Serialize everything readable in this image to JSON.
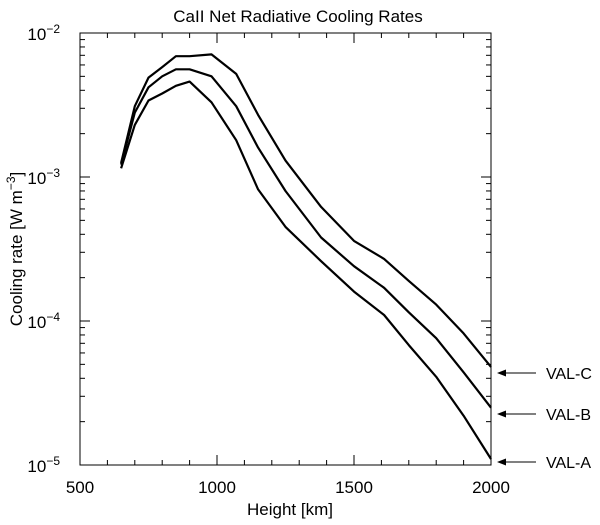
{
  "chart_data": {
    "type": "line",
    "title": "CaII Net Radiative Cooling Rates",
    "xlabel": "Height [km]",
    "ylabel_main": "Cooling rate [W m",
    "ylabel_sup": "−3",
    "ylabel_close": "]",
    "x_scale": "linear",
    "y_scale": "log",
    "xlim": [
      500,
      2000
    ],
    "ylim": [
      1e-05,
      0.01
    ],
    "x_ticks": [
      500,
      1000,
      1500,
      2000
    ],
    "x_tick_labels": [
      "500",
      "1000",
      "1500",
      "2000"
    ],
    "y_ticks": [
      {
        "value": 0.01,
        "base": "10",
        "exp": "−2"
      },
      {
        "value": 0.001,
        "base": "10",
        "exp": "−3"
      },
      {
        "value": 0.0001,
        "base": "10",
        "exp": "−4"
      },
      {
        "value": 1e-05,
        "base": "10",
        "exp": "−5"
      }
    ],
    "series": [
      {
        "name": "VAL-C",
        "x": [
          650,
          700,
          750,
          800,
          850,
          900,
          980,
          1070,
          1150,
          1250,
          1380,
          1500,
          1610,
          1700,
          1800,
          1900,
          2000
        ],
        "y": [
          0.00125,
          0.0031,
          0.0049,
          0.0058,
          0.0069,
          0.0069,
          0.0071,
          0.0052,
          0.0027,
          0.0013,
          0.00062,
          0.00036,
          0.00027,
          0.00019,
          0.00013,
          8.2e-05,
          4.8e-05
        ]
      },
      {
        "name": "VAL-B",
        "x": [
          650,
          700,
          750,
          800,
          850,
          900,
          980,
          1070,
          1150,
          1250,
          1380,
          1500,
          1610,
          1700,
          1800,
          1900,
          2000
        ],
        "y": [
          0.00122,
          0.0028,
          0.0042,
          0.005,
          0.0056,
          0.0056,
          0.005,
          0.0031,
          0.0016,
          0.0008,
          0.00038,
          0.00024,
          0.00017,
          0.000115,
          7.6e-05,
          4.4e-05,
          2.5e-05
        ]
      },
      {
        "name": "VAL-A",
        "x": [
          650,
          700,
          750,
          800,
          850,
          900,
          980,
          1070,
          1150,
          1250,
          1380,
          1500,
          1610,
          1700,
          1800,
          1900,
          2000
        ],
        "y": [
          0.00115,
          0.0023,
          0.0034,
          0.0038,
          0.0043,
          0.0046,
          0.0033,
          0.0018,
          0.00082,
          0.00045,
          0.00026,
          0.00016,
          0.00011,
          6.8e-05,
          4.1e-05,
          2.2e-05,
          1.1e-05
        ]
      }
    ],
    "annotations": [
      "VAL-C",
      "VAL-B",
      "VAL-A"
    ]
  }
}
